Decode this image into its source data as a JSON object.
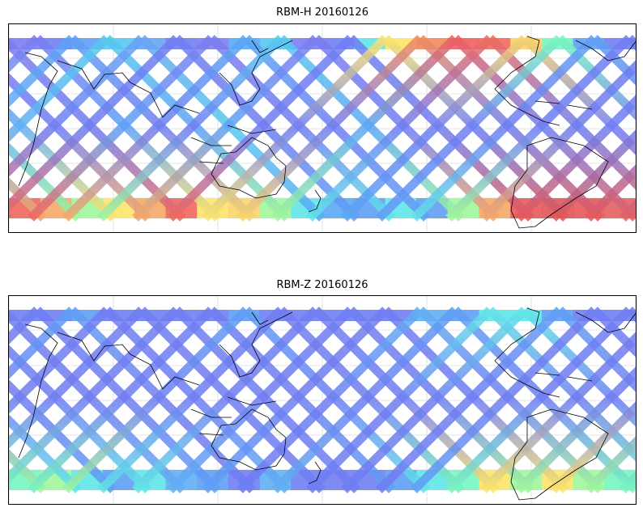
{
  "panels": [
    {
      "title": "RBM-H 20160126",
      "bands": [
        {
          "row": 0,
          "colors": [
            "#7b7cf0",
            "#6f7ef2",
            "#5fa0f5",
            "#56c9f0",
            "#67a5f3",
            "#6f7ef2",
            "#7b7cf0",
            "#5aa8f5",
            "#57c8f0",
            "#7b7cf0",
            "#6f7ef2",
            "#61e6e8",
            "#fde46a",
            "#f28a5c",
            "#ef5f5f",
            "#f06a5e",
            "#fad26a",
            "#78f6c0",
            "#5fa0f5",
            "#6f7ef2"
          ]
        },
        {
          "row": 1,
          "colors": [
            "#61b0f4",
            "#6f7ef2",
            "#6f7ef2",
            "#5fa0f5",
            "#6f7ef2",
            "#6f7ef2",
            "#5fa0f5",
            "#57c8f0",
            "#6f7ef2",
            "#6f7ef2",
            "#6f7ef2",
            "#5aa8f5",
            "#6f7ef2",
            "#6f7ef2",
            "#6f7ef2",
            "#6f7ef2",
            "#6f7ef2",
            "#6f7ef2",
            "#6f7ef2",
            "#6f7ef2"
          ]
        },
        {
          "row": 2,
          "colors": [
            "#f0685e",
            "#f6a867",
            "#9ff79c",
            "#fde46a",
            "#f6a867",
            "#f0685e",
            "#fde46a",
            "#fbd46a",
            "#9ff79c",
            "#61e6e8",
            "#5aa8f5",
            "#5fa0f5",
            "#61e6e8",
            "#5fa0f5",
            "#9ff79c",
            "#f6a867",
            "#e85858",
            "#e05757",
            "#e85858",
            "#e46060"
          ]
        }
      ]
    },
    {
      "title": "RBM-Z 20160126",
      "bands": [
        {
          "row": 0,
          "colors": [
            "#6f7ef2",
            "#6f7ef2",
            "#5fa0f5",
            "#6f7ef2",
            "#6f7ef2",
            "#6f7ef2",
            "#6f7ef2",
            "#5fa0f5",
            "#6f7ef2",
            "#6f7ef2",
            "#6f7ef2",
            "#6f7ef2",
            "#6f7ef2",
            "#61b0f4",
            "#5fa0f5",
            "#61e6e8",
            "#61e6e8",
            "#5fa0f5",
            "#6f7ef2",
            "#6f7ef2"
          ]
        },
        {
          "row": 1,
          "colors": [
            "#6f7ef2",
            "#6f7ef2",
            "#6f7ef2",
            "#6f7ef2",
            "#6f7ef2",
            "#6f7ef2",
            "#6f7ef2",
            "#6f7ef2",
            "#6f7ef2",
            "#6f7ef2",
            "#6f7ef2",
            "#6f7ef2",
            "#6f7ef2",
            "#6f7ef2",
            "#6f7ef2",
            "#6f7ef2",
            "#6f7ef2",
            "#6f7ef2",
            "#6f7ef2",
            "#6f7ef2"
          ]
        },
        {
          "row": 2,
          "colors": [
            "#78f6c0",
            "#9ff79c",
            "#61e6e8",
            "#5fa0f5",
            "#61e6e8",
            "#61b0f4",
            "#5fa0f5",
            "#6f7ef2",
            "#61b0f4",
            "#6f7ef2",
            "#6f7ef2",
            "#6f7ef2",
            "#5fa0f5",
            "#61e6e8",
            "#78f6c0",
            "#fde46a",
            "#9ff79c",
            "#fde46a",
            "#9ff79c",
            "#78f6c0"
          ]
        }
      ]
    }
  ]
}
